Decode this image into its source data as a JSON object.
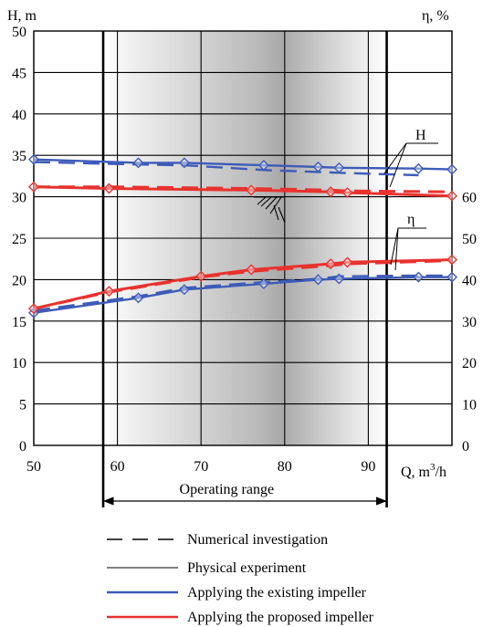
{
  "chart_data": {
    "type": "line",
    "x_label": "Q, m3/h",
    "x_label_main": "Q, m",
    "x_label_sup": "3",
    "x_label_tail": "/h",
    "left_axis_label": "H, m",
    "right_axis_label": "η, %",
    "xlim": [
      50,
      100
    ],
    "x_ticks": [
      50,
      60,
      70,
      80,
      90
    ],
    "left_ylim": [
      0,
      50
    ],
    "left_ticks": [
      0,
      5,
      10,
      15,
      20,
      25,
      30,
      35,
      40,
      45,
      50
    ],
    "right_ylim": [
      0,
      100
    ],
    "right_ticks": [
      0,
      10,
      20,
      30,
      40,
      50,
      60
    ],
    "grid": true,
    "operating_range": {
      "label": "Operating range",
      "x_start": 58.3,
      "x_end": 92.2
    },
    "callout_labels": {
      "head": "H",
      "efficiency": "η"
    },
    "legend": [
      {
        "label": "Numerical investigation",
        "style": "dashed",
        "color": "#000000"
      },
      {
        "label": "Physical experiment",
        "style": "solid",
        "color": "#000000"
      },
      {
        "label": "Applying the existing impeller",
        "style": "solid",
        "color": "#3d5bb8"
      },
      {
        "label": "Applying the proposed impeller",
        "style": "solid",
        "color": "#e8322e"
      }
    ],
    "colors": {
      "existing": "#3d5bb8",
      "proposed": "#e8322e"
    },
    "series": [
      {
        "impeller": "existing",
        "quantity": "head",
        "method": "numerical",
        "x": [
          50,
          58,
          62.5,
          68,
          78,
          84,
          86.5,
          96
        ],
        "y": [
          34.2,
          34.0,
          33.9,
          33.8,
          33.2,
          33.0,
          32.9,
          32.6
        ]
      },
      {
        "impeller": "existing",
        "quantity": "head",
        "method": "experiment",
        "x": [
          50,
          62.5,
          68,
          77.5,
          84,
          86.5,
          96,
          100
        ],
        "y": [
          34.5,
          34.1,
          34.1,
          33.8,
          33.6,
          33.5,
          33.4,
          33.3
        ]
      },
      {
        "impeller": "proposed",
        "quantity": "head",
        "method": "numerical",
        "x": [
          50,
          59,
          76,
          85.5,
          87.5,
          100
        ],
        "y": [
          31.2,
          31.2,
          31.0,
          30.8,
          30.7,
          30.6
        ]
      },
      {
        "impeller": "proposed",
        "quantity": "head",
        "method": "experiment",
        "x": [
          50,
          59,
          76,
          85.5,
          87.5,
          100
        ],
        "y": [
          31.2,
          31.0,
          30.8,
          30.6,
          30.5,
          30.1
        ]
      },
      {
        "impeller": "existing",
        "quantity": "efficiency",
        "method": "numerical",
        "x": [
          50,
          62.5,
          68,
          77.5,
          84,
          86.5,
          96,
          100
        ],
        "y": [
          32.5,
          36.0,
          38.0,
          39.4,
          40.2,
          40.8,
          41.0,
          41.0
        ]
      },
      {
        "impeller": "existing",
        "quantity": "efficiency",
        "method": "experiment",
        "x": [
          50,
          62.5,
          68,
          77.5,
          84,
          86.5,
          96,
          100
        ],
        "y": [
          32.0,
          35.6,
          37.6,
          39.0,
          40.0,
          40.2,
          40.6,
          40.6
        ]
      },
      {
        "impeller": "proposed",
        "quantity": "efficiency",
        "method": "numerical",
        "x": [
          50,
          59,
          70,
          76,
          85.5,
          87.5,
          100
        ],
        "y": [
          33.0,
          37.0,
          40.6,
          42.0,
          43.4,
          43.8,
          44.6
        ]
      },
      {
        "impeller": "proposed",
        "quantity": "efficiency",
        "method": "experiment",
        "x": [
          50,
          59,
          70,
          76,
          85.5,
          87.5,
          100
        ],
        "y": [
          33.0,
          37.2,
          40.8,
          42.4,
          43.8,
          44.2,
          44.8
        ]
      }
    ]
  }
}
